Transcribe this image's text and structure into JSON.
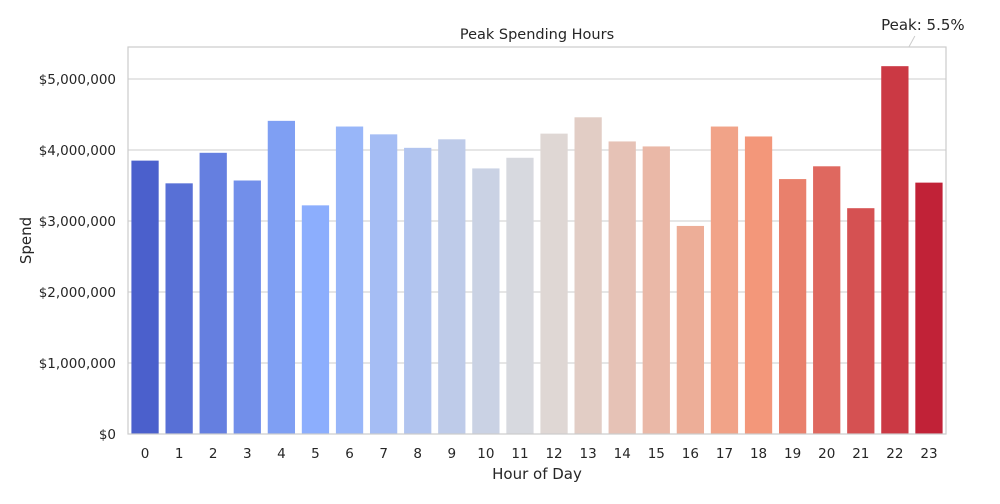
{
  "chart_data": {
    "type": "bar",
    "title": "Peak Spending Hours",
    "xlabel": "Hour of Day",
    "ylabel": "Spend",
    "categories": [
      "0",
      "1",
      "2",
      "3",
      "4",
      "5",
      "6",
      "7",
      "8",
      "9",
      "10",
      "11",
      "12",
      "13",
      "14",
      "15",
      "16",
      "17",
      "18",
      "19",
      "20",
      "21",
      "22",
      "23"
    ],
    "values": [
      3850000,
      3530000,
      3960000,
      3570000,
      4410000,
      3220000,
      4330000,
      4220000,
      4030000,
      4150000,
      3740000,
      3890000,
      4230000,
      4460000,
      4120000,
      4050000,
      2930000,
      4330000,
      4190000,
      3590000,
      3770000,
      3180000,
      5180000,
      3540000
    ],
    "ylim": [
      0,
      5450000
    ],
    "yticks": [
      0,
      1000000,
      2000000,
      3000000,
      4000000,
      5000000
    ],
    "ytick_labels": [
      "$0",
      "$1,000,000",
      "$2,000,000",
      "$3,000,000",
      "$4,000,000",
      "$5,000,000"
    ],
    "grid": "horizontal",
    "palette": "coolwarm",
    "annotation": {
      "text": "Peak: 5.5%",
      "category": "22"
    }
  }
}
